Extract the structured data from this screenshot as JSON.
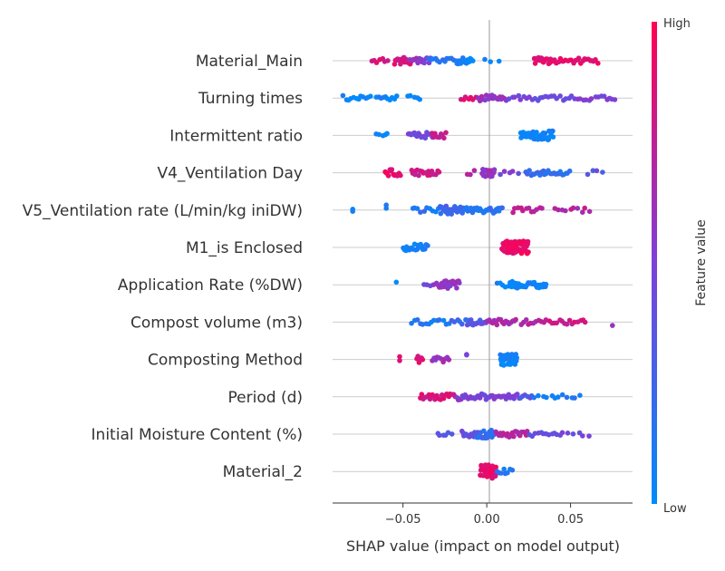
{
  "chart_data": {
    "type": "scatter",
    "title": "",
    "xlabel": "SHAP value (impact on model output)",
    "xlim": [
      -0.092,
      0.087
    ],
    "x_ticks": [
      -0.05,
      0.0,
      0.05
    ],
    "x_tick_labels": [
      "−0.05",
      "0.00",
      "0.05"
    ],
    "colorbar": {
      "title": "Feature value",
      "high_label": "High",
      "low_label": "Low",
      "low_color": "#008bfb",
      "high_color": "#ff0052"
    },
    "features": [
      {
        "name": "Material_Main",
        "clusters": [
          {
            "x0": -0.069,
            "x1": -0.058,
            "n": 7,
            "v": 0.85
          },
          {
            "x0": -0.055,
            "x1": -0.045,
            "n": 20,
            "v": 0.85
          },
          {
            "x0": -0.046,
            "x1": -0.033,
            "n": 14,
            "v": 0.55
          },
          {
            "x0": -0.035,
            "x1": -0.016,
            "n": 14,
            "v": 0.15
          },
          {
            "x0": -0.018,
            "x1": -0.008,
            "n": 14,
            "v": 0.05
          },
          {
            "x0": -0.002,
            "x1": 0.009,
            "n": 3,
            "v": 0.05
          },
          {
            "x0": 0.028,
            "x1": 0.038,
            "n": 14,
            "v": 0.9
          },
          {
            "x0": 0.038,
            "x1": 0.067,
            "n": 26,
            "v": 0.9
          }
        ]
      },
      {
        "name": "Turning times",
        "clusters": [
          {
            "x0": -0.086,
            "x1": -0.068,
            "n": 12,
            "v": 0.05
          },
          {
            "x0": -0.066,
            "x1": -0.053,
            "n": 10,
            "v": 0.05
          },
          {
            "x0": -0.048,
            "x1": -0.038,
            "n": 5,
            "v": 0.05
          },
          {
            "x0": -0.016,
            "x1": -0.004,
            "n": 8,
            "v": 0.85
          },
          {
            "x0": -0.005,
            "x1": 0.012,
            "n": 18,
            "v": 0.6
          },
          {
            "x0": 0.013,
            "x1": 0.05,
            "n": 22,
            "v": 0.45
          },
          {
            "x0": 0.05,
            "x1": 0.078,
            "n": 16,
            "v": 0.5
          }
        ]
      },
      {
        "name": "Intermittent ratio",
        "clusters": [
          {
            "x0": -0.066,
            "x1": -0.058,
            "n": 5,
            "v": 0.05
          },
          {
            "x0": -0.047,
            "x1": -0.032,
            "n": 18,
            "v": 0.45
          },
          {
            "x0": -0.033,
            "x1": -0.024,
            "n": 10,
            "v": 0.75
          },
          {
            "x0": 0.02,
            "x1": 0.029,
            "n": 18,
            "v": 0.05
          },
          {
            "x0": 0.028,
            "x1": 0.04,
            "n": 30,
            "v": 0.05
          }
        ]
      },
      {
        "name": "V4_Ventilation Day",
        "clusters": [
          {
            "x0": -0.061,
            "x1": -0.051,
            "n": 14,
            "v": 0.9
          },
          {
            "x0": -0.045,
            "x1": -0.028,
            "n": 20,
            "v": 0.8
          },
          {
            "x0": -0.012,
            "x1": -0.006,
            "n": 3,
            "v": 0.75
          },
          {
            "x0": -0.003,
            "x1": 0.005,
            "n": 16,
            "v": 0.6
          },
          {
            "x0": 0.008,
            "x1": 0.02,
            "n": 5,
            "v": 0.5
          },
          {
            "x0": 0.023,
            "x1": 0.05,
            "n": 26,
            "v": 0.2
          },
          {
            "x0": 0.06,
            "x1": 0.071,
            "n": 4,
            "v": 0.35
          }
        ]
      },
      {
        "name": "V5_Ventilation rate (L/min/kg iniDW)",
        "clusters": [
          {
            "x0": -0.08,
            "x1": -0.08,
            "n": 2,
            "v": 0.05
          },
          {
            "x0": -0.06,
            "x1": -0.06,
            "n": 2,
            "v": 0.05
          },
          {
            "x0": -0.045,
            "x1": -0.028,
            "n": 10,
            "v": 0.15
          },
          {
            "x0": -0.028,
            "x1": -0.015,
            "n": 28,
            "v": 0.25
          },
          {
            "x0": -0.015,
            "x1": 0.01,
            "n": 28,
            "v": 0.15
          },
          {
            "x0": 0.015,
            "x1": 0.034,
            "n": 12,
            "v": 0.75
          },
          {
            "x0": 0.04,
            "x1": 0.063,
            "n": 10,
            "v": 0.7
          }
        ]
      },
      {
        "name": "M1_is Enclosed",
        "clusters": [
          {
            "x0": -0.05,
            "x1": -0.035,
            "n": 22,
            "v": 0.05
          },
          {
            "x0": 0.009,
            "x1": 0.025,
            "n": 70,
            "v": 0.92
          }
        ]
      },
      {
        "name": "Application Rate (%DW)",
        "clusters": [
          {
            "x0": -0.054,
            "x1": -0.054,
            "n": 1,
            "v": 0.05
          },
          {
            "x0": -0.038,
            "x1": -0.03,
            "n": 4,
            "v": 0.5
          },
          {
            "x0": -0.03,
            "x1": -0.016,
            "n": 28,
            "v": 0.6
          },
          {
            "x0": 0.005,
            "x1": 0.013,
            "n": 4,
            "v": 0.05
          },
          {
            "x0": 0.013,
            "x1": 0.036,
            "n": 32,
            "v": 0.05
          }
        ]
      },
      {
        "name": "Compost volume (m3)",
        "clusters": [
          {
            "x0": -0.045,
            "x1": -0.025,
            "n": 12,
            "v": 0.1
          },
          {
            "x0": -0.025,
            "x1": -0.008,
            "n": 10,
            "v": 0.2
          },
          {
            "x0": -0.012,
            "x1": 0.0,
            "n": 14,
            "v": 0.35
          },
          {
            "x0": 0.0,
            "x1": 0.018,
            "n": 18,
            "v": 0.65
          },
          {
            "x0": 0.02,
            "x1": 0.035,
            "n": 10,
            "v": 0.7
          },
          {
            "x0": 0.035,
            "x1": 0.06,
            "n": 16,
            "v": 0.8
          },
          {
            "x0": 0.075,
            "x1": 0.075,
            "n": 1,
            "v": 0.5
          }
        ]
      },
      {
        "name": "Composting Method",
        "clusters": [
          {
            "x0": -0.052,
            "x1": -0.052,
            "n": 2,
            "v": 0.85
          },
          {
            "x0": -0.042,
            "x1": -0.038,
            "n": 6,
            "v": 0.9
          },
          {
            "x0": -0.033,
            "x1": -0.022,
            "n": 10,
            "v": 0.6
          },
          {
            "x0": -0.012,
            "x1": -0.012,
            "n": 2,
            "v": 0.5
          },
          {
            "x0": 0.008,
            "x1": 0.018,
            "n": 40,
            "v": 0.05
          }
        ]
      },
      {
        "name": "Period (d)",
        "clusters": [
          {
            "x0": -0.04,
            "x1": -0.018,
            "n": 22,
            "v": 0.85
          },
          {
            "x0": -0.018,
            "x1": 0.0,
            "n": 22,
            "v": 0.5
          },
          {
            "x0": 0.0,
            "x1": 0.02,
            "n": 20,
            "v": 0.5
          },
          {
            "x0": 0.02,
            "x1": 0.028,
            "n": 6,
            "v": 0.35
          },
          {
            "x0": 0.028,
            "x1": 0.057,
            "n": 12,
            "v": 0.1
          }
        ]
      },
      {
        "name": "Initial Moisture Content (%)",
        "clusters": [
          {
            "x0": -0.03,
            "x1": -0.02,
            "n": 6,
            "v": 0.35
          },
          {
            "x0": -0.015,
            "x1": -0.005,
            "n": 16,
            "v": 0.4
          },
          {
            "x0": -0.006,
            "x1": 0.005,
            "n": 22,
            "v": 0.2
          },
          {
            "x0": 0.005,
            "x1": 0.025,
            "n": 22,
            "v": 0.7
          },
          {
            "x0": 0.025,
            "x1": 0.045,
            "n": 12,
            "v": 0.4
          },
          {
            "x0": 0.045,
            "x1": 0.063,
            "n": 6,
            "v": 0.45
          }
        ]
      },
      {
        "name": "Material_2",
        "clusters": [
          {
            "x0": -0.004,
            "x1": 0.006,
            "n": 46,
            "v": 0.9
          },
          {
            "x0": 0.006,
            "x1": 0.016,
            "n": 8,
            "v": 0.15
          }
        ]
      }
    ]
  }
}
